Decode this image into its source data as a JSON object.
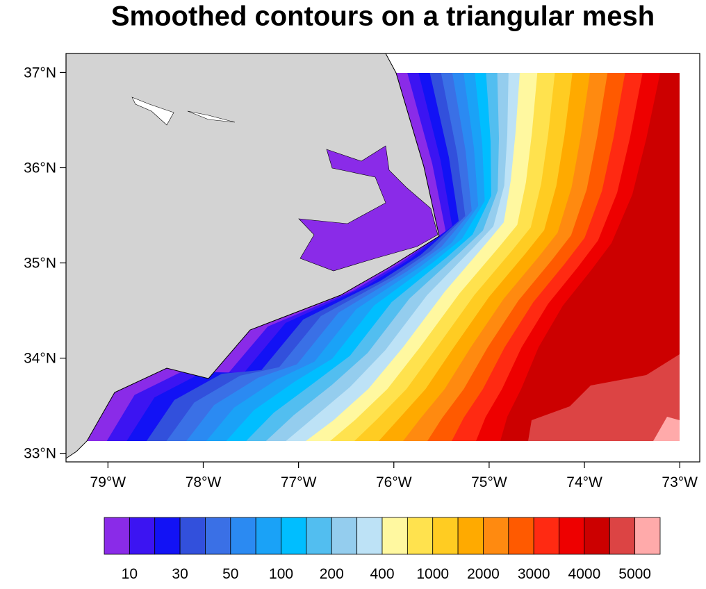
{
  "chart_data": {
    "type": "contour-map",
    "title": "Smoothed contours on a triangular mesh",
    "xlim": [
      -79.44,
      -72.79
    ],
    "ylim": [
      32.91,
      37.2
    ],
    "xticks": [
      {
        "value": -79,
        "label": "79°W"
      },
      {
        "value": -78,
        "label": "78°W"
      },
      {
        "value": -77,
        "label": "77°W"
      },
      {
        "value": -76,
        "label": "76°W"
      },
      {
        "value": -75,
        "label": "75°W"
      },
      {
        "value": -74,
        "label": "74°W"
      },
      {
        "value": -73,
        "label": "73°W"
      }
    ],
    "yticks": [
      {
        "value": 33,
        "label": "33°N"
      },
      {
        "value": 34,
        "label": "34°N"
      },
      {
        "value": 35,
        "label": "35°N"
      },
      {
        "value": 36,
        "label": "36°N"
      },
      {
        "value": 37,
        "label": "37°N"
      }
    ],
    "levels": [
      10,
      null,
      30,
      null,
      50,
      null,
      100,
      null,
      200,
      null,
      400,
      null,
      1000,
      null,
      2000,
      null,
      3000,
      null,
      4000,
      null,
      5000
    ],
    "colors": [
      "#8a2be8",
      "#3c14f2",
      "#1212f5",
      "#3250dc",
      "#3a70e6",
      "#2b8af2",
      "#1aa2f7",
      "#00beff",
      "#52bef0",
      "#94cdee",
      "#bde2f6",
      "#fff8a0",
      "#ffe24e",
      "#ffcc22",
      "#ffaa00",
      "#ff8a10",
      "#ff5a00",
      "#ff2a12",
      "#ee0000",
      "#cc0000",
      "#dc4444",
      "#ffaaaa"
    ]
  }
}
